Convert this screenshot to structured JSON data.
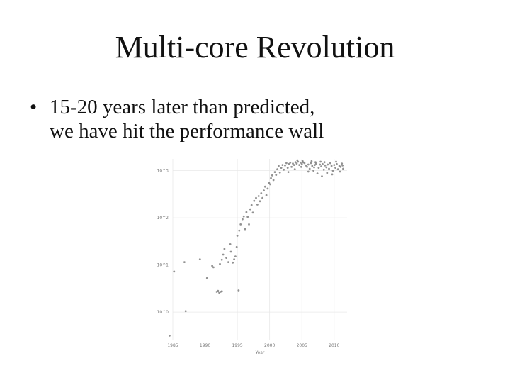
{
  "slide": {
    "title": "Multi-core Revolution",
    "bullets": [
      {
        "lines": [
          "15-20 years later than predicted,",
          "we have hit the performance wall"
        ]
      }
    ]
  },
  "chart_data": {
    "type": "scatter",
    "title": "",
    "xlabel": "Year",
    "ylabel": "",
    "x_ticks": [
      1985,
      1990,
      1995,
      2000,
      2005,
      2010
    ],
    "y_ticks": [
      "10^0",
      "10^1",
      "10^2",
      "10^3"
    ],
    "xlim": [
      1985,
      2012
    ],
    "ylim_log10": [
      -0.6,
      3.25
    ],
    "grid": true,
    "point_color": "#777777",
    "series": [
      {
        "points": [
          [
            1984.5,
            -0.5
          ],
          [
            1985.2,
            0.86
          ],
          [
            1986.8,
            1.06
          ],
          [
            1987.0,
            0.02
          ],
          [
            1989.2,
            1.12
          ],
          [
            1990.3,
            0.72
          ],
          [
            1991.1,
            0.98
          ],
          [
            1991.3,
            0.95
          ],
          [
            1991.8,
            0.43
          ],
          [
            1992.0,
            0.45
          ],
          [
            1992.2,
            0.41
          ],
          [
            1992.4,
            0.43
          ],
          [
            1992.6,
            0.44
          ],
          [
            1992.3,
            1.02
          ],
          [
            1992.6,
            1.11
          ],
          [
            1992.8,
            1.22
          ],
          [
            1993.0,
            1.34
          ],
          [
            1993.3,
            1.15
          ],
          [
            1993.6,
            1.06
          ],
          [
            1993.9,
            1.44
          ],
          [
            1994.0,
            1.28
          ],
          [
            1994.3,
            1.05
          ],
          [
            1994.5,
            1.12
          ],
          [
            1994.7,
            1.18
          ],
          [
            1994.9,
            1.38
          ],
          [
            1995.0,
            1.62
          ],
          [
            1995.2,
            0.46
          ],
          [
            1995.3,
            1.73
          ],
          [
            1995.5,
            1.86
          ],
          [
            1995.8,
            1.97
          ],
          [
            1996.0,
            2.03
          ],
          [
            1996.2,
            1.76
          ],
          [
            1996.4,
            2.12
          ],
          [
            1996.6,
            2.02
          ],
          [
            1996.8,
            1.86
          ],
          [
            1997.0,
            2.18
          ],
          [
            1997.2,
            2.27
          ],
          [
            1997.4,
            2.11
          ],
          [
            1997.6,
            2.36
          ],
          [
            1997.9,
            2.42
          ],
          [
            1998.1,
            2.28
          ],
          [
            1998.3,
            2.46
          ],
          [
            1998.5,
            2.35
          ],
          [
            1998.7,
            2.52
          ],
          [
            1998.9,
            2.42
          ],
          [
            1999.1,
            2.58
          ],
          [
            1999.3,
            2.66
          ],
          [
            1999.5,
            2.48
          ],
          [
            1999.7,
            2.62
          ],
          [
            1999.9,
            2.74
          ],
          [
            2000.1,
            2.71
          ],
          [
            2000.2,
            2.84
          ],
          [
            2000.4,
            2.9
          ],
          [
            2000.6,
            2.8
          ],
          [
            2000.8,
            2.97
          ],
          [
            2001.0,
            2.91
          ],
          [
            2001.2,
            3.03
          ],
          [
            2001.4,
            3.1
          ],
          [
            2001.6,
            2.96
          ],
          [
            2001.8,
            3.06
          ],
          [
            2002.0,
            3.12
          ],
          [
            2002.2,
            3.02
          ],
          [
            2002.4,
            3.11
          ],
          [
            2002.6,
            3.16
          ],
          [
            2002.8,
            3.06
          ],
          [
            2003.0,
            3.14
          ],
          [
            2003.2,
            3.17
          ],
          [
            2003.4,
            3.08
          ],
          [
            2003.6,
            3.15
          ],
          [
            2003.8,
            3.12
          ],
          [
            2004.0,
            3.18
          ],
          [
            2004.2,
            3.15
          ],
          [
            2004.4,
            3.19
          ],
          [
            2004.6,
            3.12
          ],
          [
            2004.8,
            3.17
          ],
          [
            2005.0,
            3.14
          ],
          [
            2005.2,
            3.18
          ],
          [
            2005.4,
            3.16
          ],
          [
            2005.6,
            3.11
          ],
          [
            2005.8,
            3.08
          ],
          [
            2006.0,
            3.13
          ],
          [
            2006.0,
            2.98
          ],
          [
            2006.2,
            3.04
          ],
          [
            2006.4,
            3.16
          ],
          [
            2006.6,
            3.1
          ],
          [
            2006.8,
            3.0
          ],
          [
            2007.0,
            3.12
          ],
          [
            2007.2,
            3.15
          ],
          [
            2007.4,
            2.94
          ],
          [
            2007.6,
            3.06
          ],
          [
            2007.8,
            3.13
          ],
          [
            2008.0,
            3.09
          ],
          [
            2008.1,
            2.88
          ],
          [
            2008.2,
            3.14
          ],
          [
            2008.4,
            3.02
          ],
          [
            2008.6,
            3.11
          ],
          [
            2008.8,
            3.07
          ],
          [
            2009.0,
            3.13
          ],
          [
            2009.2,
            3.04
          ],
          [
            2009.4,
            3.16
          ],
          [
            2009.6,
            3.1
          ],
          [
            2009.8,
            3.0
          ],
          [
            2010.0,
            3.12
          ],
          [
            2010.2,
            3.06
          ],
          [
            2010.4,
            3.14
          ],
          [
            2010.6,
            3.03
          ],
          [
            2010.8,
            3.1
          ],
          [
            2011.0,
            3.08
          ],
          [
            2011.2,
            3.15
          ],
          [
            2011.4,
            3.04
          ],
          [
            2006.5,
            3.2
          ],
          [
            2007.1,
            3.18
          ],
          [
            2005.1,
            3.21
          ],
          [
            2004.9,
            3.08
          ],
          [
            2003.9,
            3.03
          ],
          [
            2002.9,
            2.97
          ],
          [
            2008.9,
            2.95
          ],
          [
            2009.7,
            2.92
          ],
          [
            2010.9,
            2.98
          ],
          [
            2011.3,
            3.11
          ],
          [
            2007.9,
            3.19
          ],
          [
            2006.9,
            3.07
          ],
          [
            2004.3,
            3.22
          ],
          [
            2008.5,
            3.18
          ],
          [
            2010.3,
            3.19
          ]
        ]
      }
    ]
  }
}
